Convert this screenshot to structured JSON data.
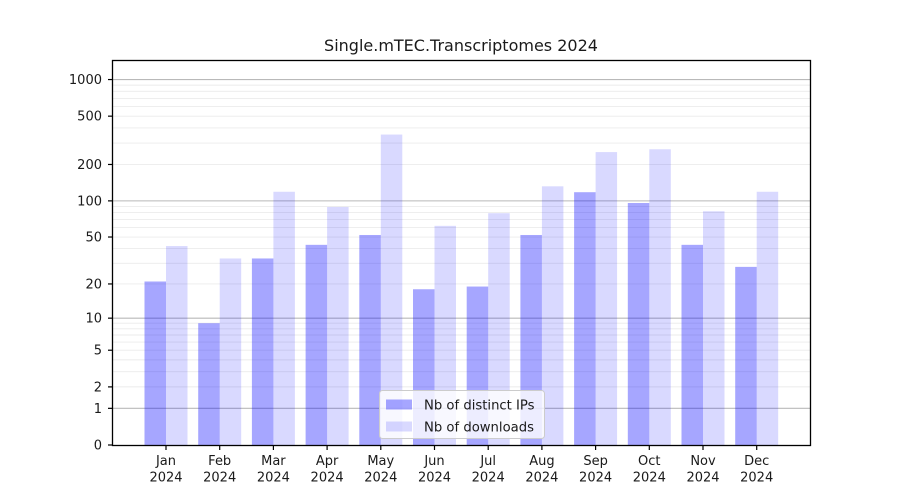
{
  "figure": {
    "title": "Single.mTEC.Transcriptomes 2024"
  },
  "chart_data": {
    "type": "bar",
    "title": "Single.mTEC.Transcriptomes 2024",
    "categories": [
      "Jan",
      "Feb",
      "Mar",
      "Apr",
      "May",
      "Jun",
      "Jul",
      "Aug",
      "Sep",
      "Oct",
      "Nov",
      "Dec"
    ],
    "year_label": "2024",
    "series": [
      {
        "name": "Nb of distinct IPs",
        "base_color": "#0000ff",
        "alpha": 0.35,
        "rendered_color": "#a9a9f5",
        "values": [
          21,
          9,
          33,
          43,
          52,
          18,
          19,
          52,
          118,
          96,
          43,
          28
        ]
      },
      {
        "name": "Nb of downloads",
        "base_color": "#0000ff",
        "alpha": 0.15,
        "rendered_color": "#dbdbf8",
        "values": [
          42,
          33,
          119,
          89,
          353,
          62,
          79,
          132,
          253,
          267,
          82,
          119
        ]
      }
    ],
    "xlabel": "",
    "ylabel": "",
    "yscale": "log1p",
    "ylim": [
      0,
      1450
    ],
    "yticks": [
      0,
      1,
      2,
      5,
      10,
      20,
      50,
      100,
      200,
      500,
      1000
    ],
    "major_gridlines": [
      1,
      10,
      100,
      1000
    ],
    "minor_gridlines": [
      2,
      3,
      4,
      5,
      6,
      7,
      8,
      9,
      20,
      30,
      40,
      50,
      60,
      70,
      80,
      90,
      200,
      300,
      400,
      500,
      600,
      700,
      800,
      900
    ],
    "grid": true,
    "legend_position": "lower center"
  },
  "colors": {
    "background": "#ffffff",
    "axis": "#000000",
    "text": "#1a1a1a",
    "major_grid": "#b9b9b9",
    "minor_grid": "#ebebeb",
    "legend_bg": "#ffffff",
    "legend_border": "#cccccc"
  }
}
